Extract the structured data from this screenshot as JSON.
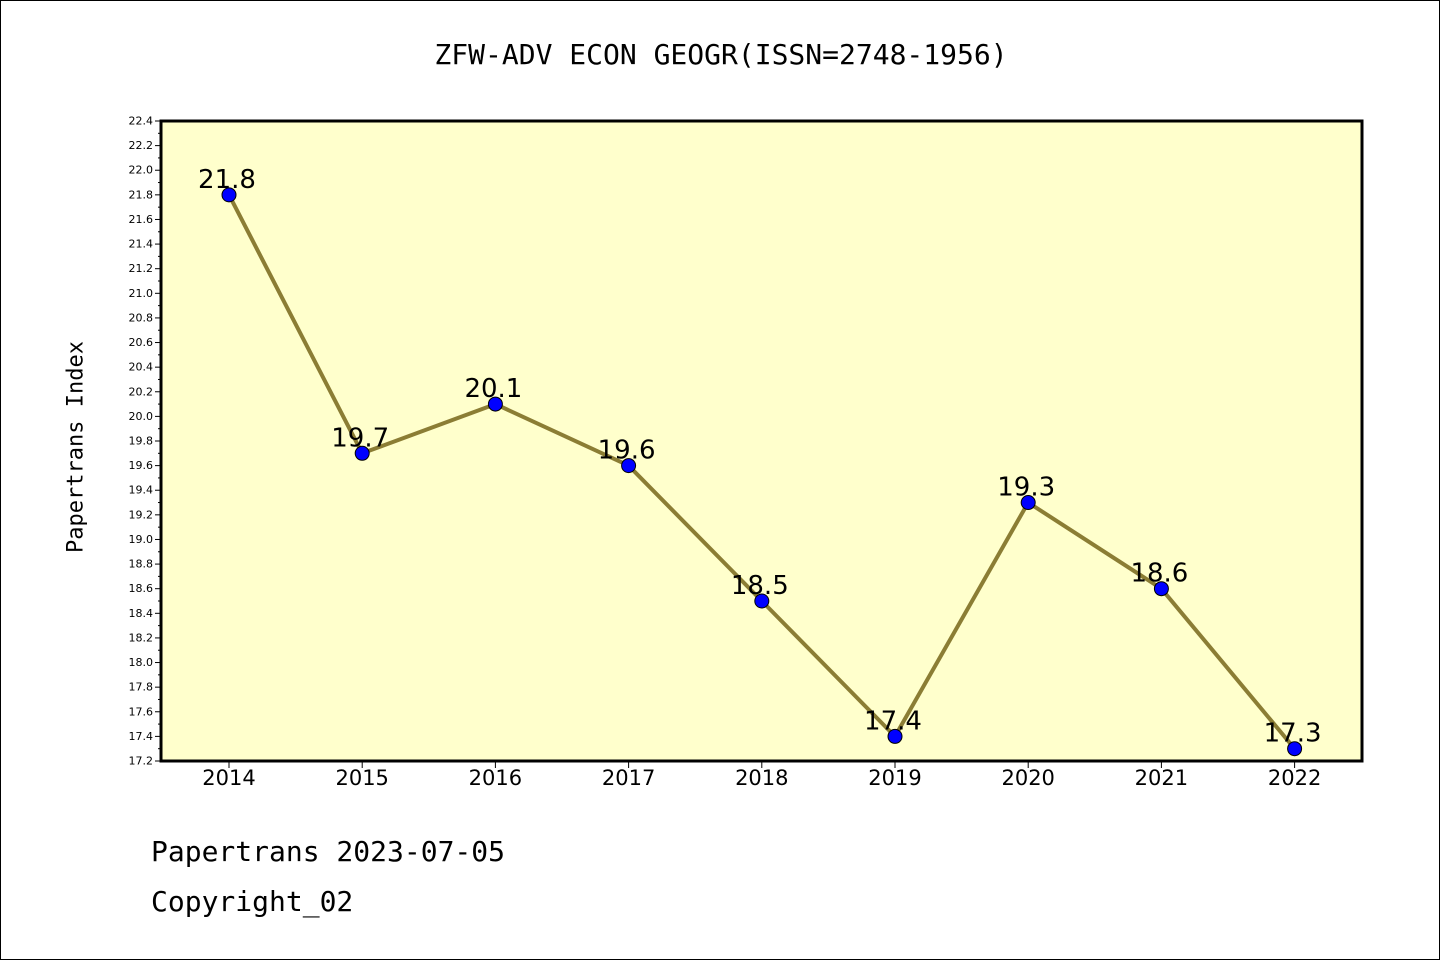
{
  "page": {
    "footer_date": "Papertrans 2023-07-05",
    "footer_copyright": "Copyright_02"
  },
  "chart_data": {
    "type": "line",
    "title": "ZFW-ADV ECON GEOGR(ISSN=2748-1956)",
    "xlabel": "",
    "ylabel": "Papertrans Index",
    "categories": [
      "2014",
      "2015",
      "2016",
      "2017",
      "2018",
      "2019",
      "2020",
      "2021",
      "2022"
    ],
    "series": [
      {
        "values": [
          21.8,
          19.7,
          20.1,
          19.6,
          18.5,
          17.4,
          19.3,
          18.6,
          17.3
        ],
        "labels": [
          "21.8",
          "19.7",
          "20.1",
          "19.6",
          "18.5",
          "17.4",
          "19.3",
          "18.6",
          "17.3"
        ]
      }
    ],
    "ylim": [
      17.2,
      22.4
    ],
    "yticks": [
      "17.2",
      "17.4",
      "17.6",
      "17.8",
      "18.0",
      "18.2",
      "18.4",
      "18.6",
      "18.8",
      "19.0",
      "19.2",
      "19.4",
      "19.6",
      "19.8",
      "20.0",
      "20.2",
      "20.4",
      "20.6",
      "20.8",
      "21.0",
      "21.2",
      "21.4",
      "21.6",
      "21.8",
      "22.0",
      "22.2",
      "22.4"
    ],
    "grid": false,
    "colors": {
      "plot_background": "#ffffcc",
      "line": "#8b7d34",
      "marker": "#0000ff",
      "marker_edge": "#000000"
    }
  }
}
